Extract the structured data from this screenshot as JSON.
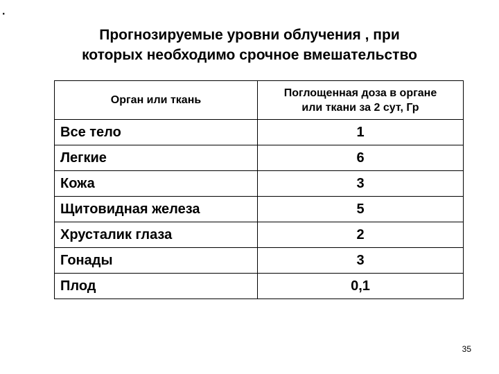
{
  "bullet": ".",
  "title_line1": "Прогнозируемые уровни облучения , при",
  "title_line2": "которых необходимо срочное вмешательство",
  "table": {
    "headers": [
      "Орган или ткань",
      "Поглощенная доза в органе",
      "или ткани за 2 сут, Гр"
    ],
    "rows": [
      {
        "organ": "Все тело",
        "dose": "1"
      },
      {
        "organ": "Легкие",
        "dose": "6"
      },
      {
        "organ": "Кожа",
        "dose": "3"
      },
      {
        "organ": "Щитовидная железа",
        "dose": "5"
      },
      {
        "organ": "Хрусталик глаза",
        "dose": "2"
      },
      {
        "organ": "Гонады",
        "dose": "3"
      },
      {
        "organ": "Плод",
        "dose": "0,1"
      }
    ]
  },
  "page_number": "35"
}
